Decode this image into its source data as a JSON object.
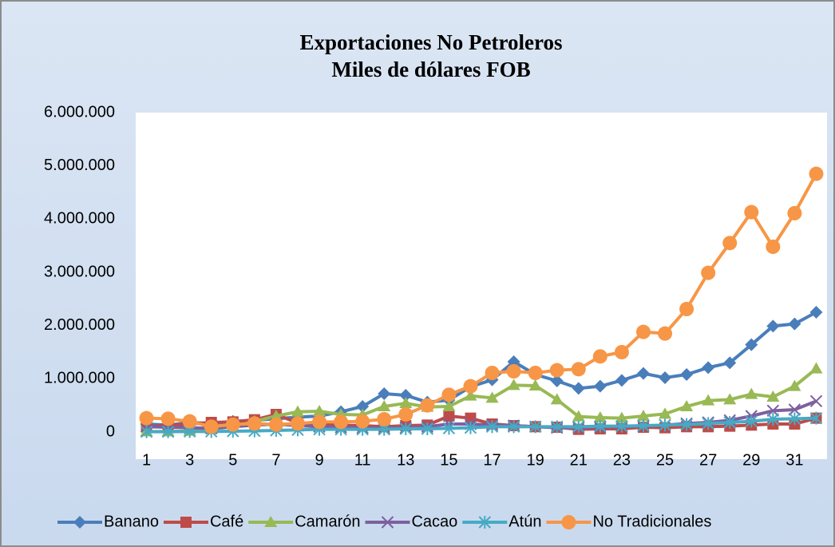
{
  "chart_data": {
    "type": "line",
    "title": "Exportaciones No Petroleros",
    "subtitle": "Miles de dólares FOB",
    "categories": [
      "1",
      null,
      "3",
      null,
      "5",
      null,
      "7",
      null,
      "9",
      null,
      "11",
      null,
      "13",
      null,
      "15",
      null,
      "17",
      null,
      "19",
      null,
      "21",
      null,
      "23",
      null,
      "25",
      null,
      "27",
      null,
      "29",
      null,
      "31",
      null
    ],
    "ylim": [
      0,
      6000000
    ],
    "yticks": [
      0,
      {
        "value": 1000000,
        "label": "1.000.000"
      },
      {
        "value": 2000000,
        "label": "2.000.000"
      },
      {
        "value": 3000000,
        "label": "3.000.000"
      },
      {
        "value": 4000000,
        "label": "4.000.000"
      },
      {
        "value": 5000000,
        "label": "5.000.000"
      },
      {
        "value": 6000000,
        "label": "6.000.000"
      }
    ],
    "legend": "bottom",
    "series": [
      {
        "name": "Banano",
        "color": "#4a7ebb",
        "marker": "diamond",
        "values": [
          150000,
          130000,
          180000,
          160000,
          200000,
          220000,
          250000,
          280000,
          300000,
          380000,
          480000,
          720000,
          690000,
          560000,
          600000,
          850000,
          980000,
          1320000,
          1080000,
          960000,
          820000,
          860000,
          970000,
          1100000,
          1020000,
          1080000,
          1210000,
          1300000,
          1640000,
          1990000,
          2030000,
          2250000
        ]
      },
      {
        "name": "Café",
        "color": "#be4b48",
        "marker": "square",
        "values": [
          100000,
          130000,
          150000,
          180000,
          190000,
          230000,
          330000,
          170000,
          150000,
          130000,
          120000,
          100000,
          120000,
          130000,
          300000,
          260000,
          150000,
          120000,
          100000,
          90000,
          50000,
          60000,
          60000,
          90000,
          80000,
          100000,
          100000,
          110000,
          130000,
          150000,
          150000,
          260000
        ]
      },
      {
        "name": "Camarón",
        "color": "#98b954",
        "marker": "triangle",
        "values": [
          10000,
          10000,
          20000,
          50000,
          100000,
          200000,
          300000,
          380000,
          390000,
          330000,
          320000,
          480000,
          540000,
          470000,
          480000,
          680000,
          640000,
          880000,
          870000,
          610000,
          290000,
          270000,
          260000,
          300000,
          340000,
          480000,
          590000,
          610000,
          710000,
          660000,
          860000,
          1190000
        ]
      },
      {
        "name": "Cacao",
        "color": "#7d60a0",
        "marker": "x",
        "values": [
          100000,
          90000,
          80000,
          70000,
          100000,
          130000,
          150000,
          120000,
          100000,
          90000,
          80000,
          70000,
          80000,
          100000,
          150000,
          150000,
          130000,
          120000,
          100000,
          80000,
          80000,
          90000,
          100000,
          110000,
          130000,
          160000,
          180000,
          220000,
          300000,
          400000,
          420000,
          580000
        ]
      },
      {
        "name": "Atún",
        "color": "#46aac5",
        "marker": "star",
        "values": [
          5000,
          5000,
          10000,
          10000,
          15000,
          20000,
          30000,
          40000,
          50000,
          50000,
          50000,
          50000,
          60000,
          60000,
          70000,
          80000,
          100000,
          100000,
          100000,
          100000,
          100000,
          110000,
          110000,
          120000,
          130000,
          140000,
          160000,
          180000,
          200000,
          240000,
          250000,
          260000
        ]
      },
      {
        "name": "No Tradicionales",
        "color": "#f79646",
        "marker": "circle",
        "values": [
          260000,
          250000,
          200000,
          100000,
          140000,
          160000,
          140000,
          160000,
          190000,
          190000,
          200000,
          240000,
          330000,
          500000,
          700000,
          860000,
          1110000,
          1140000,
          1110000,
          1160000,
          1180000,
          1420000,
          1500000,
          1880000,
          1850000,
          2310000,
          2990000,
          3550000,
          4130000,
          3480000,
          4110000,
          4850000
        ]
      }
    ]
  }
}
